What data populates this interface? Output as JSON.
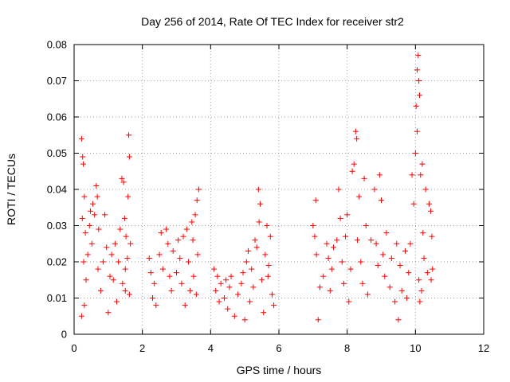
{
  "chart_data": {
    "type": "scatter",
    "title": "Day 256 of 2014, Rate Of TEC Index for receiver str2",
    "xlabel": "GPS time / hours",
    "ylabel": "ROTI / TECUs",
    "xlim": [
      0,
      12
    ],
    "ylim": [
      0,
      0.08
    ],
    "xticks": [
      0,
      2,
      4,
      6,
      8,
      10,
      12
    ],
    "xtick_labels": [
      "0",
      "2",
      "4",
      "6",
      "8",
      "10",
      "12"
    ],
    "yticks": [
      0,
      0.01,
      0.02,
      0.03,
      0.04,
      0.05,
      0.06,
      0.07,
      0.08
    ],
    "ytick_labels": [
      "0",
      "0.01",
      "0.02",
      "0.03",
      "0.04",
      "0.05",
      "0.06",
      "0.07",
      "0.08"
    ],
    "grid": true,
    "marker": "+",
    "color": "#ff0000",
    "series": [
      {
        "name": "str2",
        "points": [
          [
            0.22,
            0.054
          ],
          [
            0.25,
            0.049
          ],
          [
            0.27,
            0.047
          ],
          [
            0.3,
            0.038
          ],
          [
            0.24,
            0.032
          ],
          [
            0.33,
            0.028
          ],
          [
            0.28,
            0.02
          ],
          [
            0.3,
            0.008
          ],
          [
            0.22,
            0.005
          ],
          [
            0.35,
            0.015
          ],
          [
            0.4,
            0.022
          ],
          [
            0.45,
            0.03
          ],
          [
            0.48,
            0.034
          ],
          [
            0.52,
            0.025
          ],
          [
            0.55,
            0.036
          ],
          [
            0.6,
            0.033
          ],
          [
            0.65,
            0.041
          ],
          [
            0.68,
            0.038
          ],
          [
            0.72,
            0.029
          ],
          [
            0.7,
            0.018
          ],
          [
            0.78,
            0.012
          ],
          [
            0.85,
            0.02
          ],
          [
            0.9,
            0.033
          ],
          [
            0.95,
            0.024
          ],
          [
            1.0,
            0.006
          ],
          [
            1.05,
            0.016
          ],
          [
            1.1,
            0.022
          ],
          [
            1.15,
            0.015
          ],
          [
            1.2,
            0.025
          ],
          [
            1.25,
            0.009
          ],
          [
            1.3,
            0.02
          ],
          [
            1.35,
            0.029
          ],
          [
            1.4,
            0.043
          ],
          [
            1.45,
            0.042
          ],
          [
            1.48,
            0.032
          ],
          [
            1.5,
            0.018
          ],
          [
            1.52,
            0.027
          ],
          [
            1.58,
            0.038
          ],
          [
            1.6,
            0.055
          ],
          [
            1.62,
            0.049
          ],
          [
            1.65,
            0.025
          ],
          [
            1.62,
            0.011
          ],
          [
            1.56,
            0.021
          ],
          [
            1.5,
            0.012
          ],
          [
            1.42,
            0.014
          ],
          [
            2.2,
            0.021
          ],
          [
            2.25,
            0.017
          ],
          [
            2.3,
            0.01
          ],
          [
            2.35,
            0.014
          ],
          [
            2.4,
            0.008
          ],
          [
            2.5,
            0.022
          ],
          [
            2.55,
            0.028
          ],
          [
            2.6,
            0.018
          ],
          [
            2.7,
            0.029
          ],
          [
            2.75,
            0.025
          ],
          [
            2.8,
            0.016
          ],
          [
            2.85,
            0.012
          ],
          [
            2.9,
            0.023
          ],
          [
            3.0,
            0.017
          ],
          [
            3.05,
            0.026
          ],
          [
            3.1,
            0.021
          ],
          [
            3.15,
            0.014
          ],
          [
            3.2,
            0.027
          ],
          [
            3.25,
            0.008
          ],
          [
            3.3,
            0.029
          ],
          [
            3.35,
            0.02
          ],
          [
            3.4,
            0.012
          ],
          [
            3.45,
            0.031
          ],
          [
            3.5,
            0.016
          ],
          [
            3.55,
            0.033
          ],
          [
            3.6,
            0.037
          ],
          [
            3.65,
            0.04
          ],
          [
            3.62,
            0.022
          ],
          [
            3.58,
            0.011
          ],
          [
            3.48,
            0.026
          ],
          [
            4.1,
            0.018
          ],
          [
            4.15,
            0.012
          ],
          [
            4.2,
            0.016
          ],
          [
            4.25,
            0.009
          ],
          [
            4.3,
            0.014
          ],
          [
            4.4,
            0.01
          ],
          [
            4.45,
            0.015
          ],
          [
            4.5,
            0.007
          ],
          [
            4.55,
            0.013
          ],
          [
            4.6,
            0.016
          ],
          [
            4.7,
            0.005
          ],
          [
            4.8,
            0.011
          ],
          [
            4.9,
            0.014
          ],
          [
            4.95,
            0.017
          ],
          [
            5.0,
            0.004
          ],
          [
            5.05,
            0.02
          ],
          [
            5.1,
            0.023
          ],
          [
            5.15,
            0.009
          ],
          [
            5.2,
            0.018
          ],
          [
            5.25,
            0.013
          ],
          [
            5.3,
            0.026
          ],
          [
            5.35,
            0.024
          ],
          [
            5.4,
            0.04
          ],
          [
            5.45,
            0.036
          ],
          [
            5.5,
            0.015
          ],
          [
            5.55,
            0.006
          ],
          [
            5.6,
            0.022
          ],
          [
            5.65,
            0.03
          ],
          [
            5.7,
            0.019
          ],
          [
            5.75,
            0.027
          ],
          [
            5.8,
            0.011
          ],
          [
            5.85,
            0.008
          ],
          [
            5.42,
            0.031
          ],
          [
            5.68,
            0.016
          ],
          [
            7.0,
            0.03
          ],
          [
            7.05,
            0.027
          ],
          [
            7.08,
            0.037
          ],
          [
            7.1,
            0.022
          ],
          [
            7.15,
            0.004
          ],
          [
            7.2,
            0.013
          ],
          [
            7.3,
            0.016
          ],
          [
            7.4,
            0.025
          ],
          [
            7.45,
            0.021
          ],
          [
            7.5,
            0.012
          ],
          [
            7.55,
            0.018
          ],
          [
            7.6,
            0.024
          ],
          [
            7.7,
            0.026
          ],
          [
            7.75,
            0.04
          ],
          [
            7.8,
            0.032
          ],
          [
            7.85,
            0.02
          ],
          [
            7.9,
            0.014
          ],
          [
            7.95,
            0.027
          ],
          [
            8.0,
            0.033
          ],
          [
            8.05,
            0.009
          ],
          [
            8.1,
            0.018
          ],
          [
            8.15,
            0.045
          ],
          [
            8.2,
            0.047
          ],
          [
            8.25,
            0.056
          ],
          [
            8.28,
            0.054
          ],
          [
            8.3,
            0.026
          ],
          [
            8.35,
            0.038
          ],
          [
            8.4,
            0.02
          ],
          [
            8.45,
            0.014
          ],
          [
            8.5,
            0.043
          ],
          [
            8.55,
            0.03
          ],
          [
            8.6,
            0.011
          ],
          [
            8.7,
            0.026
          ],
          [
            8.8,
            0.04
          ],
          [
            8.85,
            0.025
          ],
          [
            8.9,
            0.019
          ],
          [
            8.95,
            0.044
          ],
          [
            9.0,
            0.037
          ],
          [
            9.05,
            0.022
          ],
          [
            9.1,
            0.016
          ],
          [
            9.15,
            0.028
          ],
          [
            9.25,
            0.013
          ],
          [
            9.3,
            0.021
          ],
          [
            9.4,
            0.009
          ],
          [
            9.45,
            0.025
          ],
          [
            9.5,
            0.004
          ],
          [
            9.55,
            0.019
          ],
          [
            9.6,
            0.012
          ],
          [
            9.7,
            0.023
          ],
          [
            9.75,
            0.01
          ],
          [
            9.8,
            0.017
          ],
          [
            9.85,
            0.025
          ],
          [
            9.9,
            0.044
          ],
          [
            9.95,
            0.036
          ],
          [
            10.0,
            0.05
          ],
          [
            10.02,
            0.063
          ],
          [
            10.05,
            0.073
          ],
          [
            10.08,
            0.077
          ],
          [
            10.1,
            0.07
          ],
          [
            10.12,
            0.066
          ],
          [
            10.13,
            0.009
          ],
          [
            10.15,
            0.044
          ],
          [
            10.2,
            0.047
          ],
          [
            10.22,
            0.028
          ],
          [
            10.25,
            0.021
          ],
          [
            10.3,
            0.04
          ],
          [
            10.35,
            0.017
          ],
          [
            10.4,
            0.036
          ],
          [
            10.45,
            0.034
          ],
          [
            10.48,
            0.027
          ],
          [
            10.5,
            0.018
          ],
          [
            10.46,
            0.015
          ],
          [
            10.05,
            0.056
          ],
          [
            10.1,
            0.015
          ],
          [
            10.18,
            0.012
          ]
        ]
      }
    ]
  }
}
